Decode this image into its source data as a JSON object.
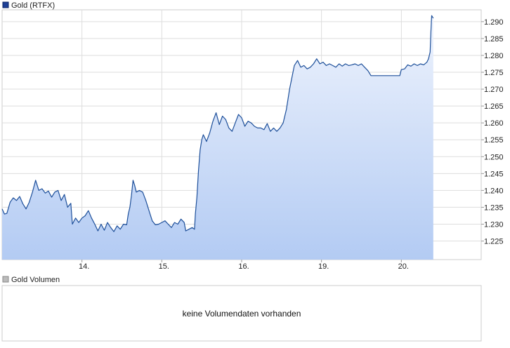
{
  "chart_data": {
    "type": "area",
    "legend": [
      {
        "name": "Gold (RTFX)",
        "color": "#1d3f96"
      }
    ],
    "x_tick_labels": [
      "14.",
      "15.",
      "16.",
      "19.",
      "20."
    ],
    "y_tick_labels": [
      "1.225",
      "1.230",
      "1.235",
      "1.240",
      "1.245",
      "1.250",
      "1.255",
      "1.260",
      "1.265",
      "1.270",
      "1.275",
      "1.280",
      "1.285",
      "1.290"
    ],
    "ylim": [
      1.2195,
      1.2935
    ],
    "xlim": [
      0,
      6
    ],
    "grid": true,
    "y_axis_side": "right",
    "colors": {
      "line": "#1d4f9a",
      "fill_top": "#eef3fd",
      "fill_bottom": "#b3cbf3",
      "grid": "#dddddd",
      "border": "#cccccc"
    },
    "series": [
      {
        "name": "Gold (RTFX)",
        "points": [
          [
            0.0,
            1.2345
          ],
          [
            0.03,
            1.233
          ],
          [
            0.06,
            1.2332
          ],
          [
            0.1,
            1.2365
          ],
          [
            0.14,
            1.2378
          ],
          [
            0.18,
            1.237
          ],
          [
            0.22,
            1.2382
          ],
          [
            0.26,
            1.236
          ],
          [
            0.3,
            1.2345
          ],
          [
            0.34,
            1.2365
          ],
          [
            0.38,
            1.2395
          ],
          [
            0.42,
            1.243
          ],
          [
            0.46,
            1.24
          ],
          [
            0.5,
            1.2405
          ],
          [
            0.54,
            1.2392
          ],
          [
            0.58,
            1.2398
          ],
          [
            0.62,
            1.238
          ],
          [
            0.66,
            1.2395
          ],
          [
            0.7,
            1.24
          ],
          [
            0.74,
            1.237
          ],
          [
            0.78,
            1.2388
          ],
          [
            0.82,
            1.235
          ],
          [
            0.86,
            1.2362
          ],
          [
            0.88,
            1.23
          ],
          [
            0.92,
            1.2318
          ],
          [
            0.96,
            1.2305
          ],
          [
            1.0,
            1.2318
          ],
          [
            1.04,
            1.2325
          ],
          [
            1.08,
            1.234
          ],
          [
            1.12,
            1.2318
          ],
          [
            1.16,
            1.23
          ],
          [
            1.2,
            1.228
          ],
          [
            1.24,
            1.23
          ],
          [
            1.28,
            1.2282
          ],
          [
            1.32,
            1.2305
          ],
          [
            1.36,
            1.229
          ],
          [
            1.4,
            1.2278
          ],
          [
            1.44,
            1.2295
          ],
          [
            1.48,
            1.2285
          ],
          [
            1.52,
            1.23
          ],
          [
            1.56,
            1.2298
          ],
          [
            1.58,
            1.233
          ],
          [
            1.6,
            1.235
          ],
          [
            1.62,
            1.2385
          ],
          [
            1.64,
            1.243
          ],
          [
            1.66,
            1.2415
          ],
          [
            1.68,
            1.2395
          ],
          [
            1.72,
            1.24
          ],
          [
            1.76,
            1.2395
          ],
          [
            1.8,
            1.237
          ],
          [
            1.84,
            1.234
          ],
          [
            1.88,
            1.231
          ],
          [
            1.92,
            1.2298
          ],
          [
            1.96,
            1.23
          ],
          [
            2.0,
            1.2305
          ],
          [
            2.04,
            1.231
          ],
          [
            2.08,
            1.23
          ],
          [
            2.12,
            1.229
          ],
          [
            2.16,
            1.2305
          ],
          [
            2.2,
            1.23
          ],
          [
            2.24,
            1.2315
          ],
          [
            2.28,
            1.2305
          ],
          [
            2.3,
            1.228
          ],
          [
            2.34,
            1.2285
          ],
          [
            2.38,
            1.229
          ],
          [
            2.41,
            1.2285
          ],
          [
            2.42,
            1.233
          ],
          [
            2.44,
            1.238
          ],
          [
            2.46,
            1.246
          ],
          [
            2.48,
            1.252
          ],
          [
            2.5,
            1.255
          ],
          [
            2.52,
            1.2565
          ],
          [
            2.56,
            1.2545
          ],
          [
            2.6,
            1.257
          ],
          [
            2.64,
            1.2605
          ],
          [
            2.68,
            1.263
          ],
          [
            2.72,
            1.2595
          ],
          [
            2.76,
            1.262
          ],
          [
            2.8,
            1.261
          ],
          [
            2.84,
            1.2585
          ],
          [
            2.88,
            1.2575
          ],
          [
            2.92,
            1.26
          ],
          [
            2.96,
            1.2625
          ],
          [
            3.0,
            1.2615
          ],
          [
            3.04,
            1.259
          ],
          [
            3.08,
            1.2605
          ],
          [
            3.12,
            1.26
          ],
          [
            3.16,
            1.259
          ],
          [
            3.2,
            1.2585
          ],
          [
            3.24,
            1.2585
          ],
          [
            3.28,
            1.258
          ],
          [
            3.32,
            1.2598
          ],
          [
            3.36,
            1.2575
          ],
          [
            3.4,
            1.2585
          ],
          [
            3.44,
            1.2575
          ],
          [
            3.48,
            1.2585
          ],
          [
            3.52,
            1.26
          ],
          [
            3.56,
            1.264
          ],
          [
            3.6,
            1.27
          ],
          [
            3.63,
            1.2735
          ],
          [
            3.66,
            1.277
          ],
          [
            3.7,
            1.2785
          ],
          [
            3.74,
            1.2765
          ],
          [
            3.78,
            1.277
          ],
          [
            3.82,
            1.276
          ],
          [
            3.86,
            1.2765
          ],
          [
            3.9,
            1.2775
          ],
          [
            3.94,
            1.279
          ],
          [
            3.98,
            1.2775
          ],
          [
            4.02,
            1.278
          ],
          [
            4.06,
            1.277
          ],
          [
            4.1,
            1.2775
          ],
          [
            4.14,
            1.277
          ],
          [
            4.18,
            1.2765
          ],
          [
            4.22,
            1.2775
          ],
          [
            4.26,
            1.2768
          ],
          [
            4.3,
            1.2775
          ],
          [
            4.34,
            1.277
          ],
          [
            4.38,
            1.2772
          ],
          [
            4.42,
            1.2775
          ],
          [
            4.46,
            1.277
          ],
          [
            4.5,
            1.2775
          ],
          [
            4.54,
            1.2765
          ],
          [
            4.58,
            1.2755
          ],
          [
            4.62,
            1.274
          ],
          [
            4.7,
            1.274
          ],
          [
            4.8,
            1.274
          ],
          [
            4.9,
            1.274
          ],
          [
            4.98,
            1.274
          ],
          [
            5.0,
            1.2758
          ],
          [
            5.04,
            1.276
          ],
          [
            5.08,
            1.2772
          ],
          [
            5.12,
            1.2768
          ],
          [
            5.16,
            1.2775
          ],
          [
            5.2,
            1.277
          ],
          [
            5.24,
            1.2775
          ],
          [
            5.28,
            1.2772
          ],
          [
            5.32,
            1.278
          ],
          [
            5.34,
            1.279
          ],
          [
            5.36,
            1.281
          ],
          [
            5.37,
            1.287
          ],
          [
            5.38,
            1.2918
          ],
          [
            5.4,
            1.291
          ]
        ]
      }
    ],
    "volume_panel": {
      "legend": {
        "name": "Gold Volumen",
        "color": "#bbbbbb"
      },
      "message": "keine Volumendaten vorhanden"
    }
  }
}
